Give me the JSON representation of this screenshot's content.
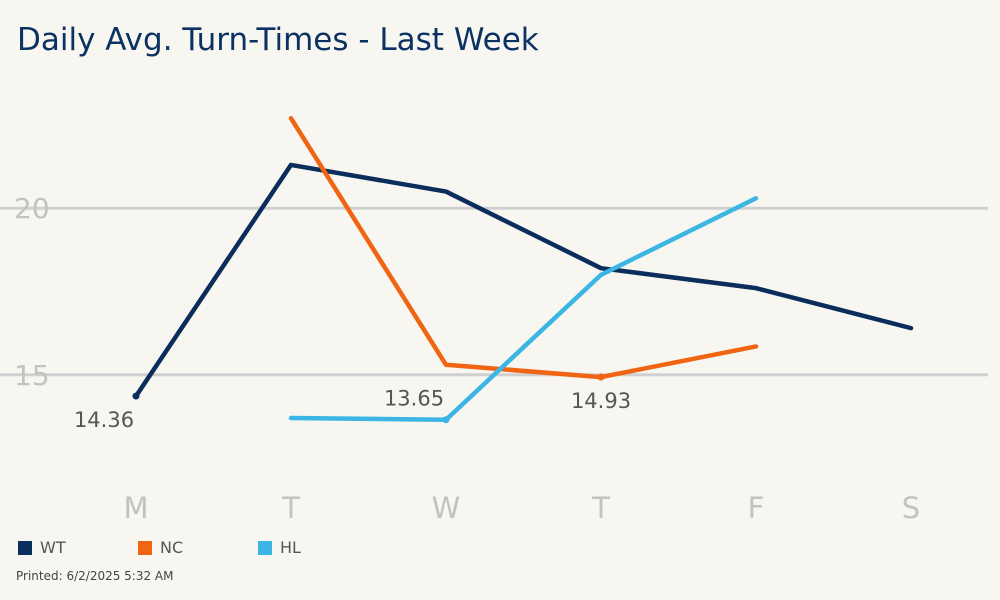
{
  "title": "Daily Avg. Turn-Times - Last Week",
  "printed_label": "Printed: 6/2/2025 5:32 AM",
  "colors": {
    "background": "#f7f6f1",
    "grid": "#d0d0d0",
    "axis_text": "#c2c2c2",
    "title": "#0b3263"
  },
  "chart_data": {
    "type": "line",
    "title": "Daily Avg. Turn-Times - Last Week",
    "xlabel": "",
    "ylabel": "",
    "categories": [
      "M",
      "T",
      "W",
      "T",
      "F",
      "S"
    ],
    "yticks": [
      15,
      20
    ],
    "ylim": [
      11.9,
      23.7
    ],
    "grid": true,
    "legend_position": "bottom-left",
    "series": [
      {
        "name": "WT",
        "color": "#0b2d5b",
        "values": [
          14.36,
          21.3,
          20.5,
          18.2,
          17.6,
          16.4
        ]
      },
      {
        "name": "NC",
        "color": "#f06412",
        "values": [
          null,
          22.7,
          15.3,
          14.93,
          15.85,
          null
        ]
      },
      {
        "name": "HL",
        "color": "#3db5e4",
        "values": [
          null,
          13.7,
          13.65,
          18.0,
          20.3,
          null
        ]
      }
    ],
    "data_labels": [
      {
        "series": 0,
        "index": 0,
        "text": "14.36"
      },
      {
        "series": 2,
        "index": 2,
        "text": "13.65"
      },
      {
        "series": 1,
        "index": 3,
        "text": "14.93"
      }
    ]
  }
}
